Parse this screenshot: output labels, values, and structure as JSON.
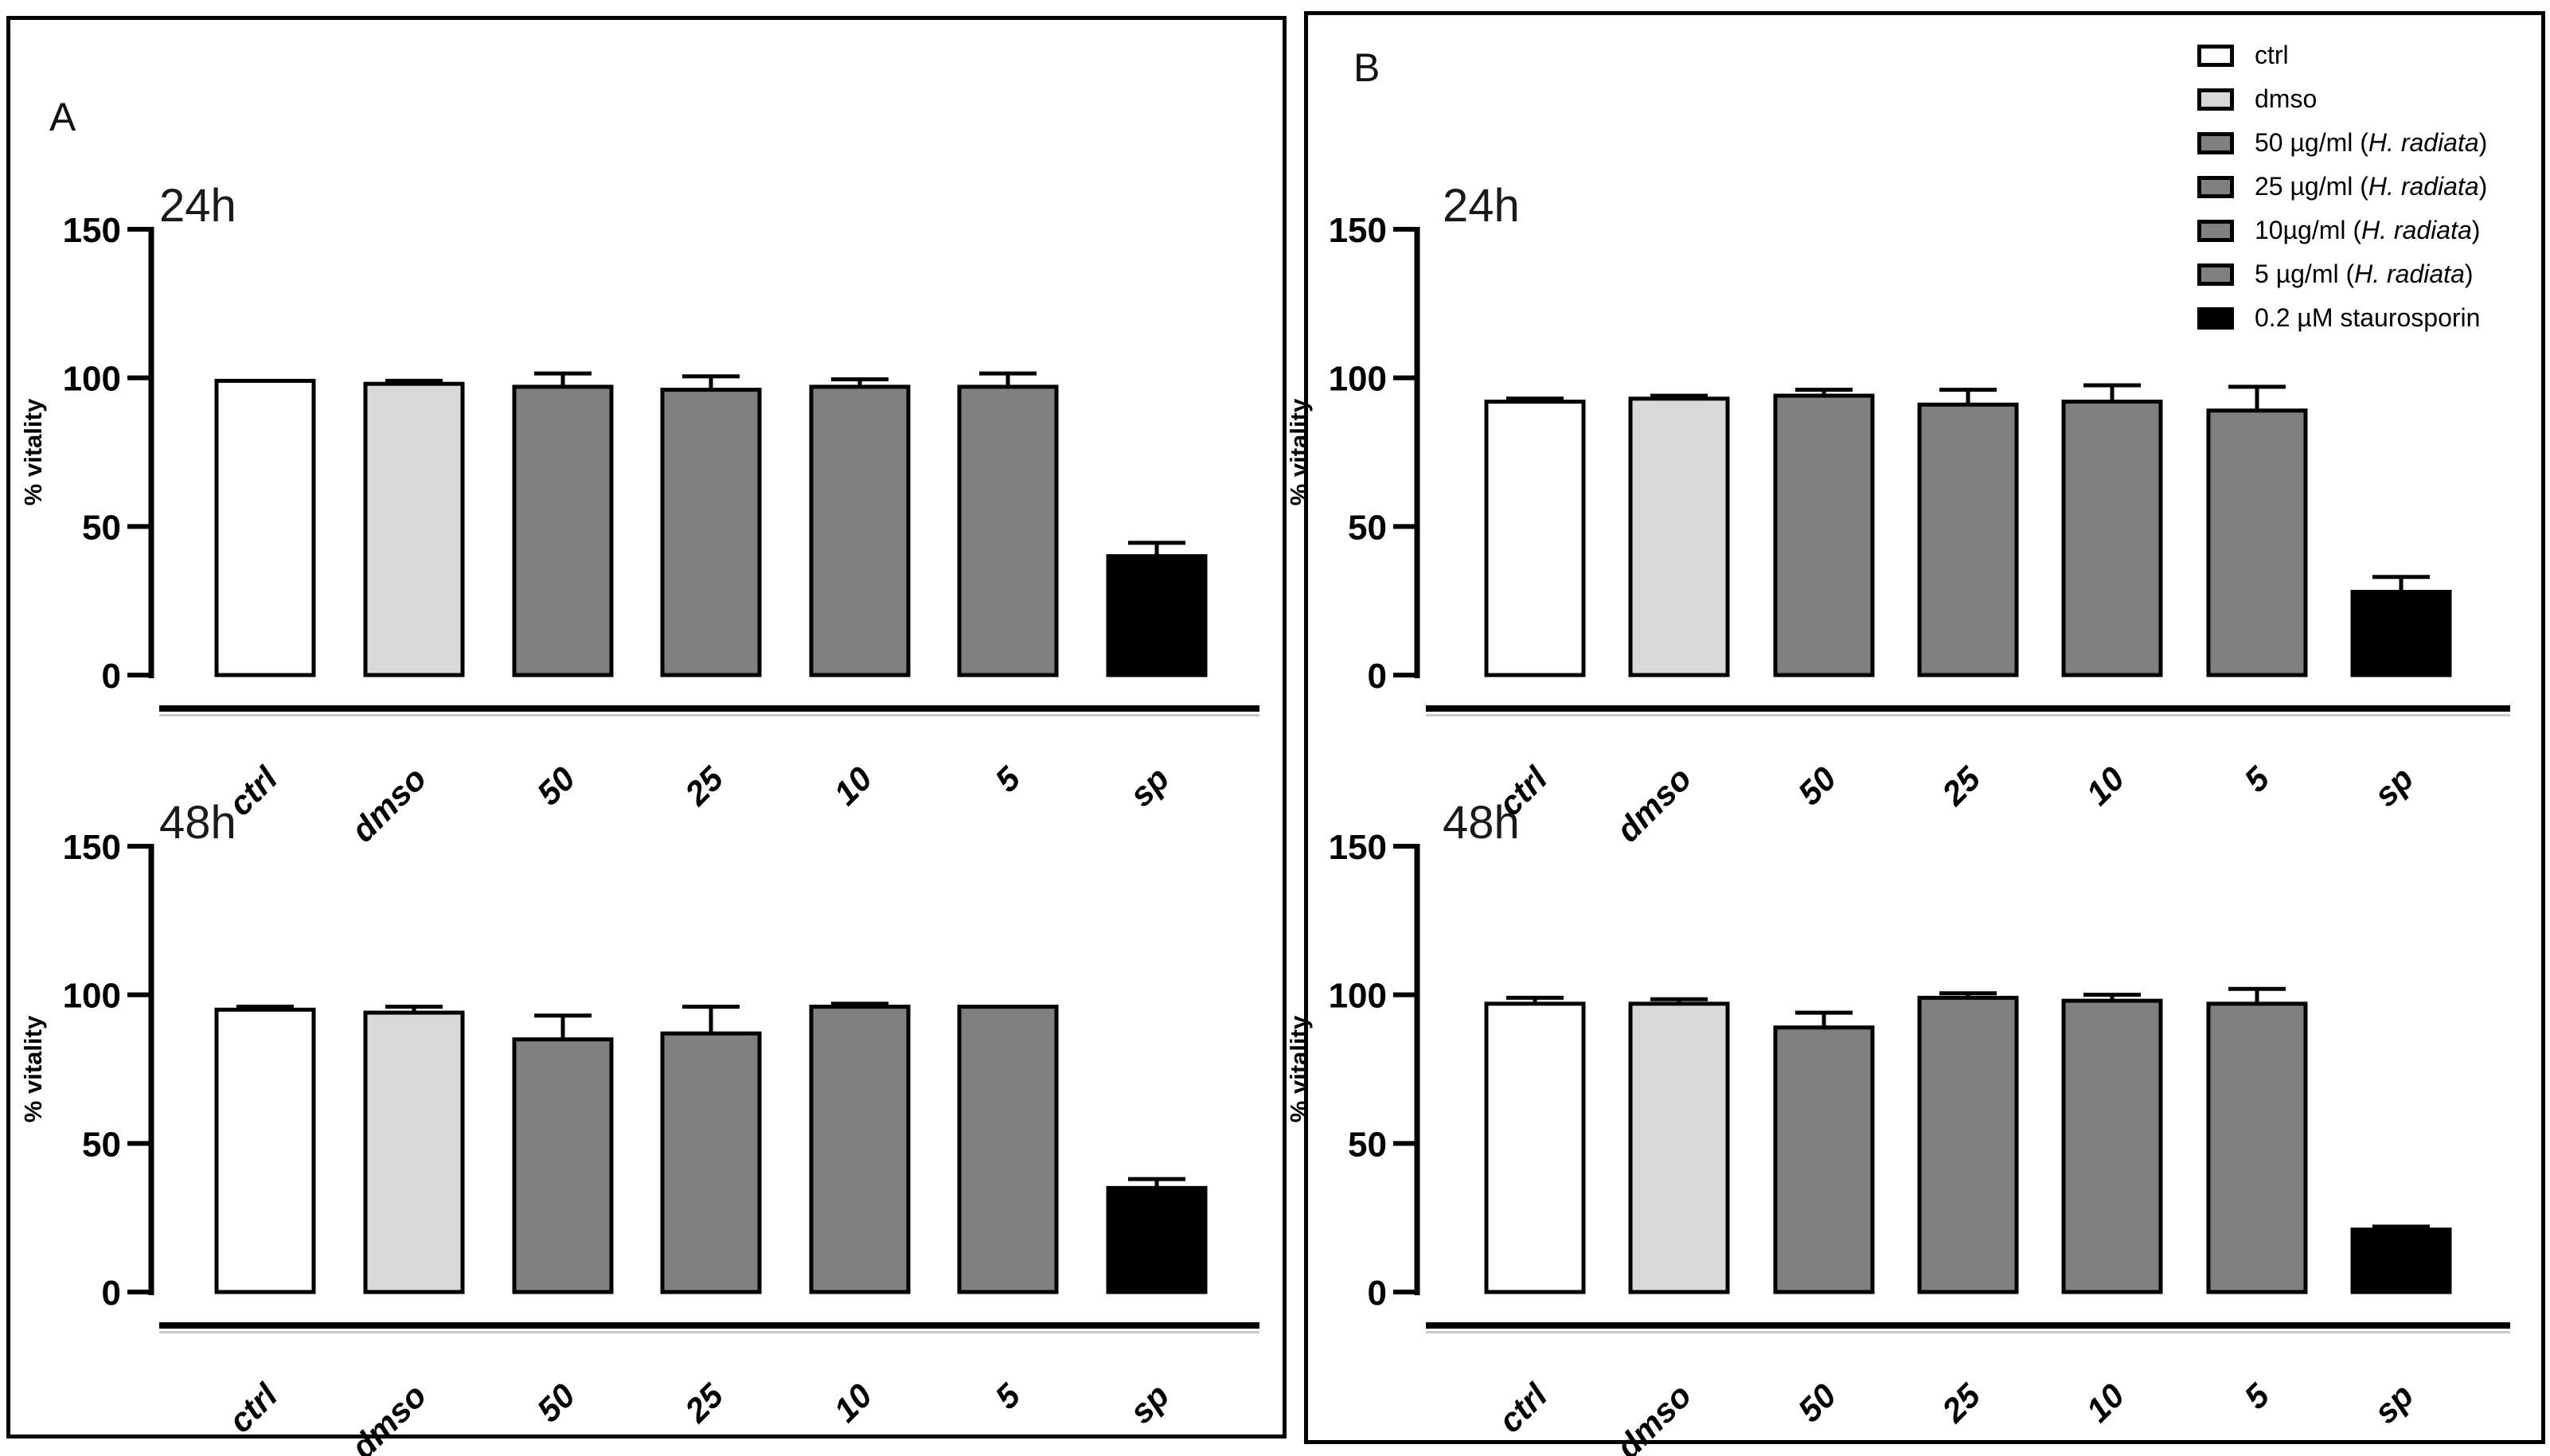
{
  "figure": {
    "panels": [
      {
        "label": "A",
        "charts": [
          0,
          1
        ]
      },
      {
        "label": "B",
        "charts": [
          2,
          3
        ]
      }
    ],
    "legend": {
      "position": "top-right-panel-B",
      "entries": [
        {
          "label_prefix": "ctrl",
          "label_italic": "",
          "label_suffix": "",
          "color": "#ffffff"
        },
        {
          "label_prefix": "dmso",
          "label_italic": "",
          "label_suffix": "",
          "color": "#d9d9d9"
        },
        {
          "label_prefix": "50 µg/ml (",
          "label_italic": "H. radiata",
          "label_suffix": ")",
          "color": "#808080"
        },
        {
          "label_prefix": "25 µg/ml (",
          "label_italic": "H. radiata",
          "label_suffix": ")",
          "color": "#808080"
        },
        {
          "label_prefix": "10µg/ml (",
          "label_italic": "H. radiata",
          "label_suffix": ")",
          "color": "#808080"
        },
        {
          "label_prefix": "5 µg/ml (",
          "label_italic": "H. radiata",
          "label_suffix": ")",
          "color": "#808080"
        },
        {
          "label_prefix": "0.2 µM staurosporin",
          "label_italic": "",
          "label_suffix": "",
          "color": "#000000"
        }
      ]
    },
    "colors": {
      "ctrl": "#ffffff",
      "dmso": "#d9d9d9",
      "extract": "#808080",
      "staurosporin": "#000000",
      "axis": "#000000"
    }
  },
  "chart_data": [
    {
      "id": "a-24h",
      "panel": "A",
      "type": "bar",
      "title": "24h",
      "ylabel": "% vitality",
      "ylim": [
        0,
        150
      ],
      "yticks": [
        0,
        50,
        100,
        150
      ],
      "grid": false,
      "categories": [
        "ctrl",
        "dmso",
        "50",
        "25",
        "10",
        "5",
        "sp"
      ],
      "values": [
        99,
        98,
        97,
        96,
        97,
        97,
        40
      ],
      "errors_plus": [
        0,
        1,
        4.5,
        4.5,
        2.5,
        4.5,
        4.5
      ],
      "bar_colors": [
        "#ffffff",
        "#d9d9d9",
        "#808080",
        "#808080",
        "#808080",
        "#808080",
        "#000000"
      ]
    },
    {
      "id": "a-48h",
      "panel": "A",
      "type": "bar",
      "title": "48h",
      "ylabel": "% vitality",
      "ylim": [
        0,
        150
      ],
      "yticks": [
        0,
        50,
        100,
        150
      ],
      "grid": false,
      "categories": [
        "ctrl",
        "dmso",
        "50",
        "25",
        "10",
        "5",
        "sp"
      ],
      "values": [
        95,
        94,
        85,
        87,
        96,
        96,
        35
      ],
      "errors_plus": [
        1,
        2,
        8,
        9,
        1,
        0,
        3
      ],
      "bar_colors": [
        "#ffffff",
        "#d9d9d9",
        "#808080",
        "#808080",
        "#808080",
        "#808080",
        "#000000"
      ]
    },
    {
      "id": "b-24h",
      "panel": "B",
      "type": "bar",
      "title": "24h",
      "ylabel": "% vitality",
      "ylim": [
        0,
        150
      ],
      "yticks": [
        0,
        50,
        100,
        150
      ],
      "grid": false,
      "categories": [
        "ctrl",
        "dmso",
        "50",
        "25",
        "10",
        "5",
        "sp"
      ],
      "values": [
        92,
        93,
        94,
        91,
        92,
        89,
        28
      ],
      "errors_plus": [
        1,
        1,
        2,
        5,
        5.5,
        8,
        5
      ],
      "bar_colors": [
        "#ffffff",
        "#d9d9d9",
        "#808080",
        "#808080",
        "#808080",
        "#808080",
        "#000000"
      ]
    },
    {
      "id": "b-48h",
      "panel": "B",
      "type": "bar",
      "title": "48h",
      "ylabel": "% vitality",
      "ylim": [
        0,
        150
      ],
      "yticks": [
        0,
        50,
        100,
        150
      ],
      "grid": false,
      "categories": [
        "ctrl",
        "dmso",
        "50",
        "25",
        "10",
        "5",
        "sp"
      ],
      "values": [
        97,
        97,
        89,
        99,
        98,
        97,
        21
      ],
      "errors_plus": [
        2,
        1.5,
        5,
        1.5,
        2,
        5,
        1
      ],
      "bar_colors": [
        "#ffffff",
        "#d9d9d9",
        "#808080",
        "#808080",
        "#808080",
        "#808080",
        "#000000"
      ]
    }
  ]
}
